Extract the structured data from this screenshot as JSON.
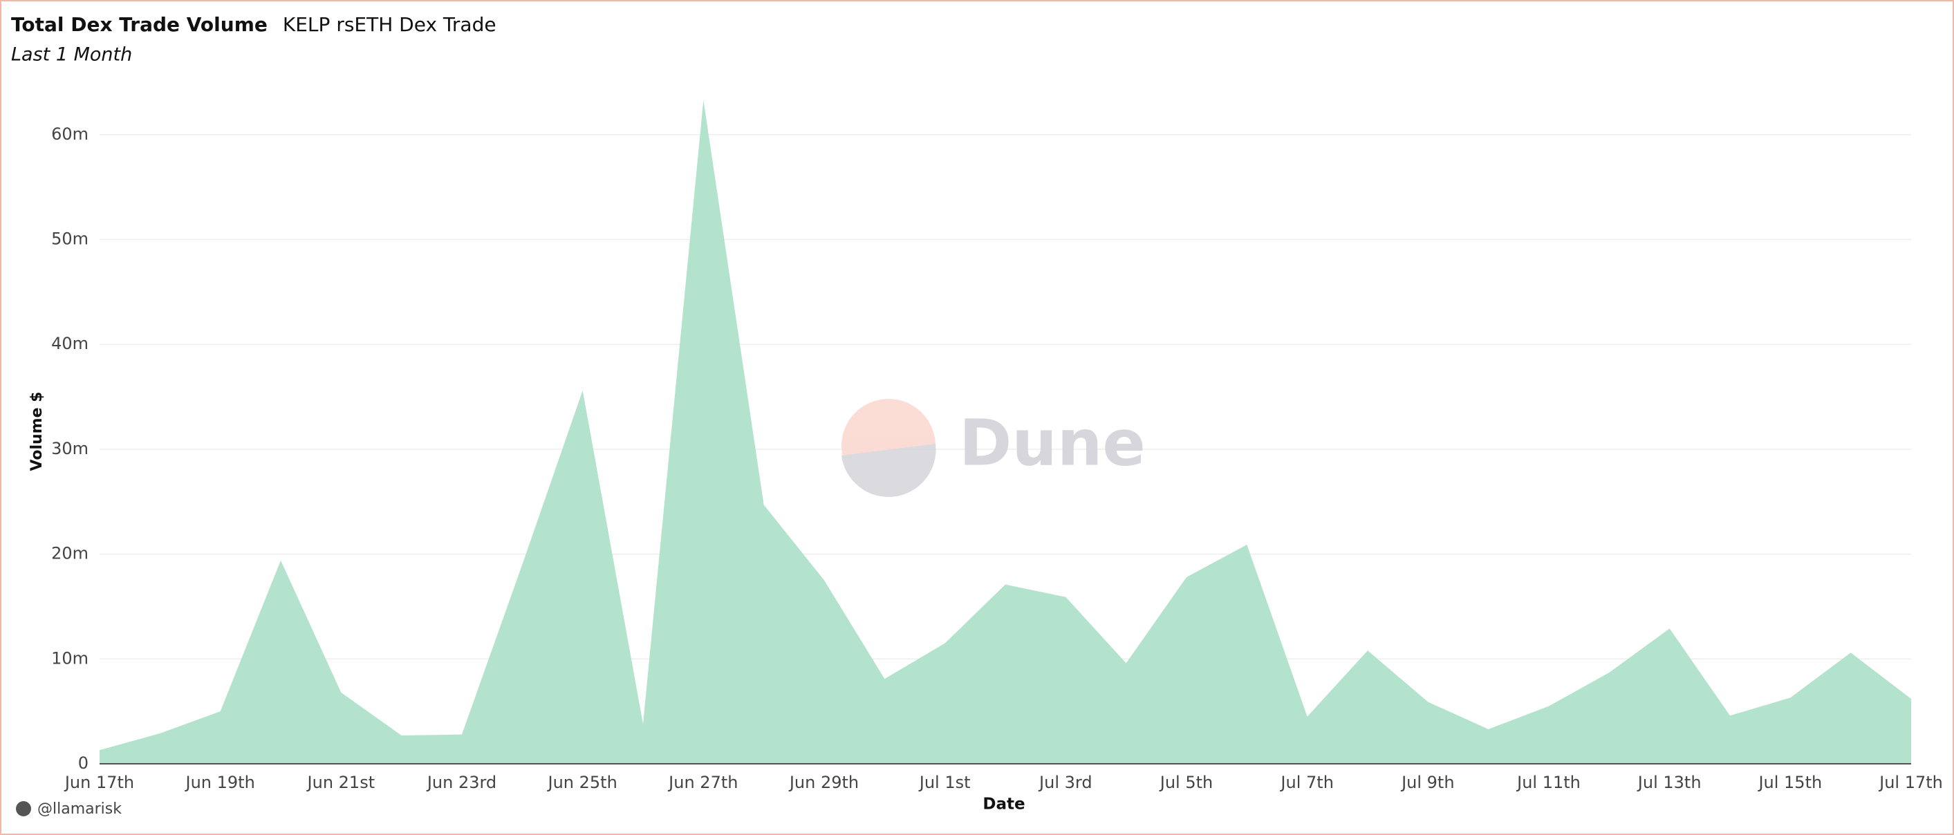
{
  "chart_data": {
    "type": "area",
    "title": "Total Dex Trade Volume",
    "subtitle": "KELP rsETH Dex Trade",
    "period": "Last 1 Month",
    "x_label": "Date",
    "y_label": "Volume $",
    "watermark": "Dune",
    "author": "@llamarisk",
    "categories": [
      "Jun 17th",
      null,
      "Jun 19th",
      null,
      "Jun 21st",
      null,
      "Jun 23rd",
      null,
      "Jun 25th",
      null,
      "Jun 27th",
      null,
      "Jun 29th",
      null,
      "Jul 1st",
      null,
      "Jul 3rd",
      null,
      "Jul 5th",
      null,
      "Jul 7th",
      null,
      "Jul 9th",
      null,
      "Jul 11th",
      null,
      "Jul 13th",
      null,
      "Jul 15th",
      null,
      "Jul 17th"
    ],
    "series": [
      {
        "name": "Volume",
        "color": "#b3e2cd",
        "values": [
          1300000,
          2900000,
          5000000,
          19400000,
          6800000,
          2700000,
          2800000,
          19000000,
          35600000,
          3800000,
          63300000,
          24700000,
          17500000,
          8100000,
          11500000,
          17100000,
          15900000,
          9600000,
          17800000,
          20900000,
          4500000,
          10800000,
          5900000,
          3300000,
          5500000,
          8700000,
          12900000,
          4600000,
          6300000,
          10600000,
          6200000
        ]
      }
    ],
    "ylim": [
      0,
      65000000
    ],
    "yticks": [
      0,
      {
        "value": 10000000,
        "label": "10m"
      },
      {
        "value": 20000000,
        "label": "20m"
      },
      {
        "value": 30000000,
        "label": "30m"
      },
      {
        "value": 40000000,
        "label": "40m"
      },
      {
        "value": 50000000,
        "label": "50m"
      },
      {
        "value": 60000000,
        "label": "60m"
      }
    ],
    "grid": true
  }
}
